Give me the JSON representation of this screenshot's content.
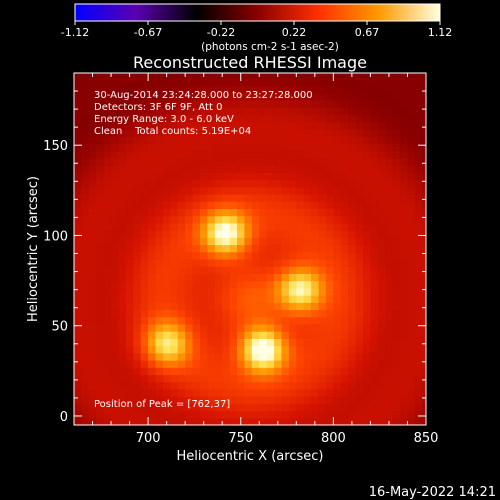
{
  "chart_data": {
    "type": "heatmap",
    "title": "Reconstructed RHESSI Image",
    "xlabel": "Heliocentric X (arcsec)",
    "ylabel": "Heliocentric Y (arcsec)",
    "xlim": [
      660,
      850
    ],
    "ylim": [
      -5,
      190
    ],
    "x_ticks": [
      700,
      750,
      800,
      850
    ],
    "y_ticks": [
      0,
      50,
      100,
      150
    ],
    "colorbar": {
      "range": [
        -1.12,
        1.12
      ],
      "ticks": [
        "-1.12",
        "-0.67",
        "-0.22",
        "0.22",
        "0.67",
        "1.12"
      ],
      "unit_label": "(photons cm-2 s-1 asec-2)",
      "colors": [
        "#0000ff",
        "#5a00b0",
        "#000000",
        "#8a0000",
        "#ff3000",
        "#ff9a00",
        "#ffffe0"
      ]
    },
    "info": [
      "30-Aug-2014 23:24:28.000 to 23:27:28.000",
      "Detectors: 3F 6F 9F, Att 0",
      "Energy Range: 3.0 - 6.0 keV",
      "Clean    Total counts: 5.19E+04"
    ],
    "peak_label": "Position of Peak = [762,37]",
    "peak": [
      762,
      37
    ],
    "sources": [
      {
        "x": 762,
        "y": 37,
        "level": 1.12
      },
      {
        "x": 782,
        "y": 70,
        "level": 0.95
      },
      {
        "x": 742,
        "y": 101,
        "level": 0.98
      },
      {
        "x": 710,
        "y": 40,
        "level": 0.78
      }
    ]
  },
  "timestamp": "16-May-2022 14:21"
}
